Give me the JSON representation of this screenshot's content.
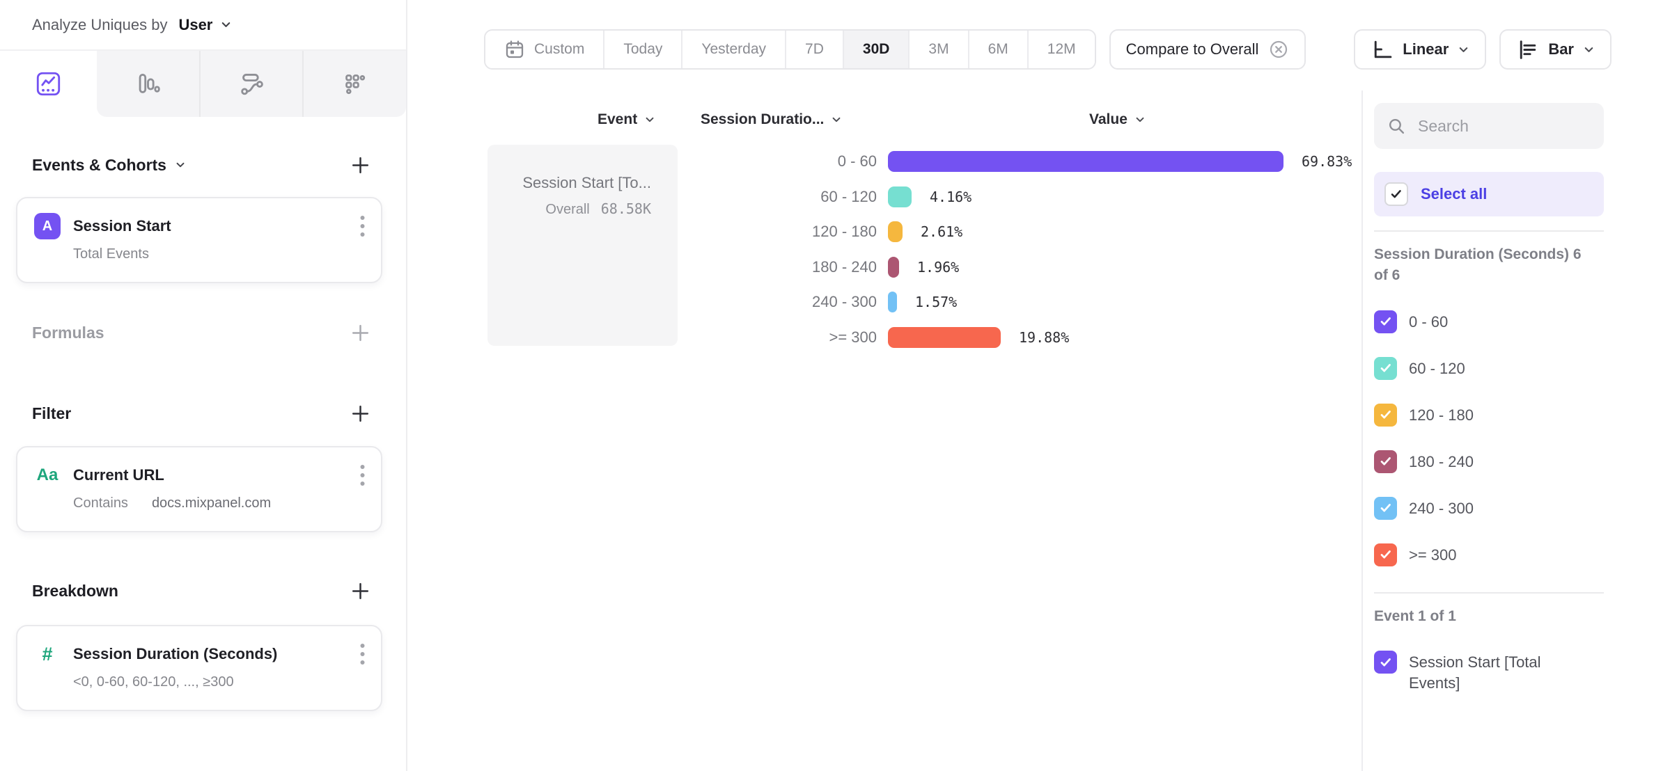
{
  "header": {
    "label": "Analyze Uniques by",
    "metric": "User"
  },
  "sidebar": {
    "tabs": [
      "insights",
      "funnels",
      "flows",
      "retention"
    ],
    "active_tab": "insights",
    "events_title": "Events & Cohorts",
    "event_card": {
      "badge": "A",
      "title": "Session Start",
      "subtitle": "Total Events"
    },
    "formulas_title": "Formulas",
    "filter_title": "Filter",
    "filter_card": {
      "badge": "Aa",
      "title": "Current URL",
      "operator": "Contains",
      "value": "docs.mixpanel.com"
    },
    "breakdown_title": "Breakdown",
    "breakdown_card": {
      "badge": "#",
      "title": "Session Duration (Seconds)",
      "subtitle": "<0, 0-60, 60-120, ..., ≥300"
    }
  },
  "toolbar": {
    "date_ranges": [
      "Custom",
      "Today",
      "Yesterday",
      "7D",
      "30D",
      "3M",
      "6M",
      "12M"
    ],
    "active_range": "30D",
    "compare_label": "Compare to Overall",
    "scale_label": "Linear",
    "chart_type_label": "Bar"
  },
  "table": {
    "col_event": "Event",
    "col_breakdown": "Session Duratio...",
    "col_value": "Value",
    "event_cell_title": "Session Start [To...",
    "overall_label": "Overall",
    "overall_value": "68.58K"
  },
  "chart_data": {
    "type": "bar",
    "orientation": "horizontal",
    "series_name": "Session Start [Total Events]",
    "overall_value": "68.58K",
    "categories": [
      "0 - 60",
      "60 - 120",
      "120 - 180",
      "180 - 240",
      "240 - 300",
      ">= 300"
    ],
    "values": [
      69.83,
      4.16,
      2.61,
      1.96,
      1.57,
      19.88
    ],
    "value_labels": [
      "69.83%",
      "4.16%",
      "2.61%",
      "1.96%",
      "1.57%",
      "19.88%"
    ],
    "colors": [
      "#7452f2",
      "#76dfd1",
      "#f5b73e",
      "#ac5672",
      "#72c1f5",
      "#f7674e"
    ],
    "unit": "%",
    "xlim": [
      0,
      100
    ],
    "grid": false,
    "legend_position": "right-panel-checkboxes"
  },
  "right_panel": {
    "search_placeholder": "Search",
    "select_all_label": "Select all",
    "duration_group": {
      "title": "Session Duration (Seconds) 6 of 6",
      "items": [
        {
          "label": "0 - 60",
          "color": "#7452f2",
          "checked": true
        },
        {
          "label": "60 - 120",
          "color": "#76dfd1",
          "checked": true
        },
        {
          "label": "120 - 180",
          "color": "#f5b73e",
          "checked": true
        },
        {
          "label": "180 - 240",
          "color": "#ac5672",
          "checked": true
        },
        {
          "label": "240 - 300",
          "color": "#72c1f5",
          "checked": true
        },
        {
          "label": ">= 300",
          "color": "#f7674e",
          "checked": true
        }
      ]
    },
    "event_group": {
      "title": "Event 1 of 1",
      "items": [
        {
          "label": "Session Start [Total Events]",
          "color": "#7452f2",
          "checked": true
        }
      ]
    }
  },
  "colors": {
    "accent_purple": "#7452f2",
    "green_type_icon": "#1ea67c",
    "select_all_bg": "#efecfc",
    "active_segment_bg": "#f3f3f5"
  }
}
